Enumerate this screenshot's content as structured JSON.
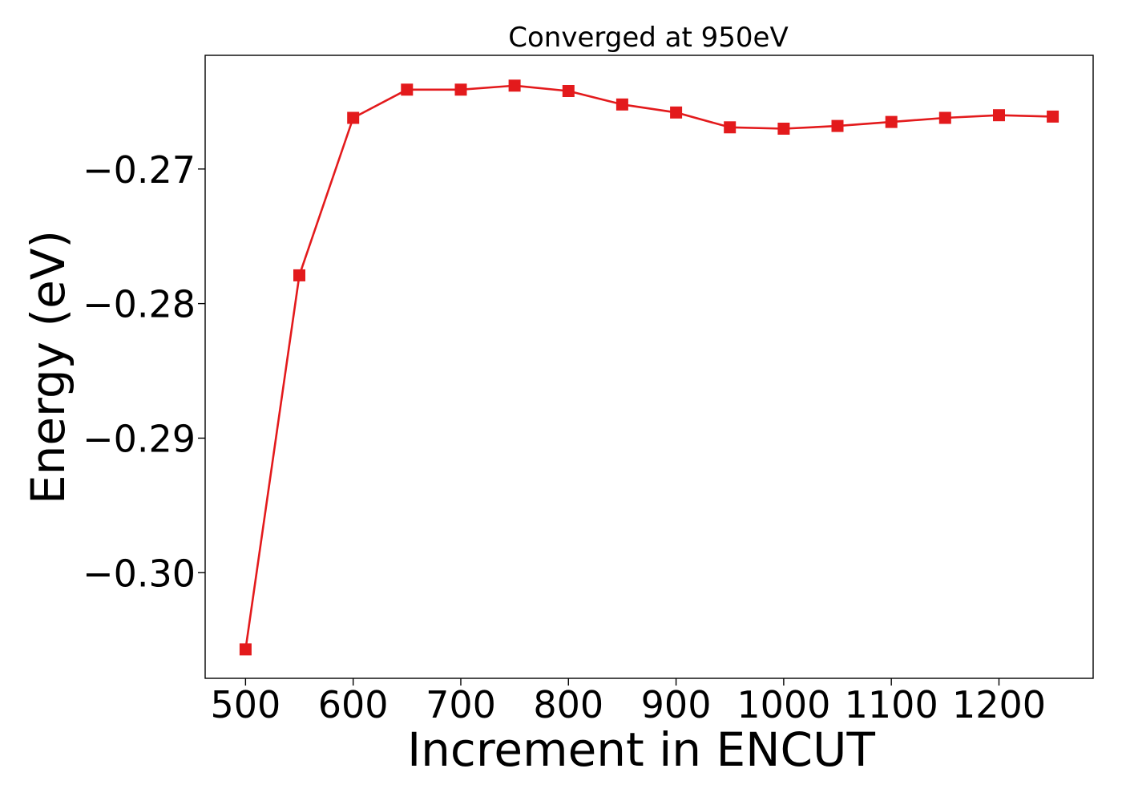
{
  "chart_data": {
    "type": "line",
    "title": "Converged at 950eV",
    "xlabel": "Increment in ENCUT",
    "ylabel": "Energy (eV)",
    "xlim": [
      462.5,
      1287.5
    ],
    "ylim": [
      -0.30785,
      -0.26155
    ],
    "x_ticks": [
      500,
      600,
      700,
      800,
      900,
      1000,
      1100,
      1200
    ],
    "x_tick_labels": [
      "500",
      "600",
      "700",
      "800",
      "900",
      "1000",
      "1100",
      "1200"
    ],
    "y_ticks": [
      -0.27,
      -0.28,
      -0.29,
      -0.3
    ],
    "y_tick_labels": [
      "−0.27",
      "−0.28",
      "−0.29",
      "−0.30"
    ],
    "grid": false,
    "legend": "none",
    "series": [
      {
        "color": "#e31a1c",
        "marker": "square",
        "x": [
          500,
          550,
          600,
          650,
          700,
          750,
          800,
          850,
          900,
          950,
          1000,
          1050,
          1100,
          1150,
          1200,
          1250
        ],
        "y": [
          -0.3057,
          -0.2779,
          -0.2662,
          -0.2641,
          -0.2641,
          -0.2638,
          -0.2642,
          -0.2652,
          -0.2658,
          -0.2669,
          -0.267,
          -0.2668,
          -0.2665,
          -0.2662,
          -0.266,
          -0.2661
        ]
      }
    ]
  }
}
